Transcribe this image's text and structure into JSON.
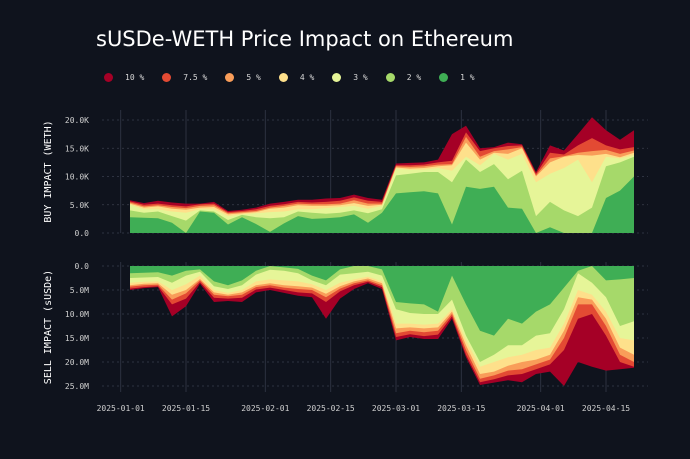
{
  "chart_data": {
    "type": "area",
    "title": "sUSDe-WETH Price Impact on Ethereum",
    "legend": {
      "placement": "top",
      "entries": [
        {
          "label": "10 %",
          "color": "#a50026"
        },
        {
          "label": "7.5 %",
          "color": "#e34a33"
        },
        {
          "label": "5 %",
          "color": "#f99d59"
        },
        {
          "label": "4 %",
          "color": "#fee08b"
        },
        {
          "label": "3 %",
          "color": "#e6f598"
        },
        {
          "label": "2 %",
          "color": "#a6d96a"
        },
        {
          "label": "1 %",
          "color": "#3fae55"
        }
      ]
    },
    "x_ticks": [
      "2025-01-01",
      "2025-01-15",
      "2025-02-01",
      "2025-02-15",
      "2025-03-01",
      "2025-03-15",
      "2025-04-01",
      "2025-04-15"
    ],
    "x": [
      "2025-01-03",
      "2025-01-06",
      "2025-01-09",
      "2025-01-12",
      "2025-01-15",
      "2025-01-18",
      "2025-01-21",
      "2025-01-24",
      "2025-01-27",
      "2025-01-30",
      "2025-02-02",
      "2025-02-05",
      "2025-02-08",
      "2025-02-11",
      "2025-02-14",
      "2025-02-17",
      "2025-02-20",
      "2025-02-23",
      "2025-02-26",
      "2025-03-01",
      "2025-03-04",
      "2025-03-07",
      "2025-03-10",
      "2025-03-13",
      "2025-03-16",
      "2025-03-19",
      "2025-03-22",
      "2025-03-25",
      "2025-03-28",
      "2025-03-31",
      "2025-04-03",
      "2025-04-06",
      "2025-04-09",
      "2025-04-12",
      "2025-04-15",
      "2025-04-18",
      "2025-04-21"
    ],
    "grid": true,
    "panels": [
      {
        "name": "buy",
        "ylabel": "BUY IMPACT (WETH)",
        "ylim": [
          0,
          20000
        ],
        "y_ticks": [
          "0.0",
          "5.0K",
          "10.0K",
          "15.0K",
          "20.0K"
        ],
        "y_tick_values": [
          0,
          5000,
          10000,
          15000,
          20000
        ],
        "series": [
          {
            "values": [
              2800,
              2700,
              2600,
              1800,
              0,
              3800,
              3600,
              1500,
              2800,
              1600,
              200,
              1700,
              3000,
              2500,
              2600,
              2800,
              3300,
              1800,
              3600,
              7000,
              7200,
              7400,
              7000,
              1500,
              8200,
              7800,
              8200,
              4500,
              4300,
              0,
              1000,
              0,
              0,
              0,
              6200,
              7500,
              10000
            ]
          },
          {
            "values": [
              4000,
              3600,
              3800,
              3000,
              2200,
              4000,
              3800,
              2300,
              3200,
              2800,
              2600,
              2800,
              3800,
              3600,
              3400,
              3600,
              4000,
              3500,
              4200,
              10200,
              10500,
              10800,
              10800,
              9000,
              13000,
              10800,
              12200,
              9500,
              11000,
              3000,
              5500,
              4000,
              3000,
              4500,
              11800,
              12500,
              13500
            ]
          },
          {
            "values": [
              5000,
              4200,
              4200,
              3800,
              3600,
              4200,
              4200,
              3000,
              3300,
              3500,
              3700,
              3800,
              4200,
              4200,
              4400,
              4600,
              4800,
              4300,
              4800,
              11400,
              11200,
              11200,
              11500,
              11000,
              13500,
              12000,
              14000,
              13000,
              14000,
              9000,
              10500,
              11500,
              13000,
              9000,
              13500,
              13200,
              13800
            ]
          },
          {
            "values": [
              5200,
              4500,
              4700,
              4300,
              4100,
              4500,
              4600,
              3300,
              3500,
              3700,
              4300,
              4500,
              4900,
              4800,
              4800,
              4900,
              5300,
              4800,
              5000,
              11600,
              11400,
              11500,
              11800,
              12000,
              16000,
              13000,
              14200,
              14000,
              15000,
              10000,
              12500,
              13500,
              13800,
              13700,
              14000,
              13400,
              14200
            ]
          },
          {
            "values": [
              5400,
              4700,
              4900,
              4600,
              4400,
              4800,
              4900,
              3500,
              3700,
              3900,
              4500,
              4800,
              5200,
              5100,
              5100,
              5200,
              5800,
              5200,
              5200,
              11800,
              11700,
              11800,
              12100,
              12200,
              17000,
              13500,
              14500,
              14800,
              15200,
              10200,
              13200,
              13600,
              14200,
              14500,
              14700,
              14000,
              14600
            ]
          },
          {
            "values": [
              5600,
              5000,
              5200,
              4900,
              4700,
              5100,
              5200,
              3700,
              3900,
              4200,
              4800,
              5100,
              5500,
              5400,
              5500,
              5700,
              6300,
              5700,
              5500,
              12000,
              12000,
              12100,
              12500,
              12800,
              17800,
              14500,
              15000,
              15400,
              15500,
              10500,
              14200,
              13900,
              15500,
              16800,
              15500,
              14800,
              15200
            ]
          },
          {
            "values": [
              5800,
              5300,
              5700,
              5400,
              5200,
              5200,
              5500,
              3900,
              4100,
              4500,
              5200,
              5500,
              5900,
              5900,
              6100,
              6200,
              6800,
              6200,
              5900,
              12300,
              12400,
              12500,
              13000,
              17500,
              19000,
              15000,
              15200,
              16000,
              15700,
              10800,
              15500,
              14600,
              17500,
              20500,
              18200,
              16500,
              18200
            ]
          }
        ]
      },
      {
        "name": "sell",
        "ylabel": "SELL IMPACT (sUSDe)",
        "ylim": [
          0,
          25000000
        ],
        "inverted": true,
        "y_ticks": [
          "0.0",
          "5.0M",
          "10.0M",
          "15.0M",
          "20.0M",
          "25.0M"
        ],
        "y_tick_values": [
          0,
          5000000,
          10000000,
          15000000,
          20000000,
          25000000
        ],
        "series": [
          {
            "values": [
              1500,
              1400,
              1300,
              2000,
              1000,
              700,
              3200,
              4000,
              3000,
              1000,
              0,
              300,
              600,
              2000,
              3000,
              700,
              0,
              0,
              700,
              7500,
              7800,
              8000,
              9500,
              2000,
              8000,
              13500,
              14500,
              11000,
              12000,
              9500,
              8000,
              4500,
              1000,
              0,
              3000,
              2800,
              2500
            ]
          },
          {
            "values": [
              2500,
              2400,
              2300,
              3500,
              2000,
              1200,
              4200,
              4800,
              4000,
              1800,
              800,
              1000,
              1500,
              3000,
              4000,
              1800,
              1500,
              1200,
              2000,
              9000,
              9800,
              10000,
              10000,
              7000,
              14500,
              20000,
              18500,
              16500,
              16500,
              14500,
              14000,
              9000,
              1500,
              3500,
              6500,
              12500,
              11500
            ]
          },
          {
            "values": [
              3500,
              3300,
              3200,
              5000,
              3800,
              2000,
              5000,
              5600,
              5000,
              3200,
              2800,
              3000,
              3200,
              3800,
              5000,
              3500,
              2800,
              2200,
              3200,
              12000,
              12000,
              12200,
              12000,
              9000,
              15500,
              21000,
              20000,
              19000,
              18500,
              17500,
              17000,
              12000,
              5000,
              6000,
              9500,
              15000,
              15500
            ]
          },
          {
            "values": [
              4000,
              3700,
              3600,
              6000,
              5000,
              2700,
              5500,
              6000,
              5500,
              4000,
              3600,
              4000,
              4200,
              4500,
              5800,
              4200,
              3200,
              2600,
              3600,
              13000,
              12800,
              13000,
              12800,
              9500,
              16500,
              22500,
              22000,
              20800,
              20000,
              19500,
              18500,
              13500,
              6500,
              7000,
              11000,
              17000,
              18500
            ]
          },
          {
            "values": [
              4300,
              4000,
              3900,
              7000,
              5700,
              3000,
              6000,
              6300,
              6000,
              4400,
              4000,
              4500,
              4800,
              5000,
              6500,
              4700,
              3600,
              3000,
              4000,
              14000,
              13500,
              13800,
              13500,
              10000,
              17500,
              23500,
              22800,
              21800,
              21500,
              20500,
              19500,
              15000,
              8000,
              8000,
              12500,
              18500,
              20000
            ]
          },
          {
            "values": [
              4700,
              4400,
              4200,
              8000,
              6800,
              3400,
              6600,
              6800,
              6600,
              4900,
              4500,
              5000,
              5500,
              5700,
              7500,
              5300,
              4000,
              3300,
              4400,
              14800,
              14200,
              14600,
              14300,
              10500,
              18500,
              24200,
              23600,
              22800,
              22500,
              21500,
              20500,
              17500,
              11000,
              10000,
              14500,
              20000,
              21000
            ]
          },
          {
            "values": [
              5000,
              4600,
              4400,
              10500,
              8400,
              3700,
              7500,
              7300,
              7500,
              5500,
              5000,
              5600,
              6200,
              6500,
              11000,
              6800,
              4800,
              3600,
              4800,
              15500,
              14800,
              15200,
              15200,
              11000,
              19000,
              24800,
              24300,
              23800,
              24200,
              22500,
              22000,
              25000,
              20000,
              21000,
              21800,
              21500,
              21200
            ]
          }
        ]
      }
    ]
  }
}
